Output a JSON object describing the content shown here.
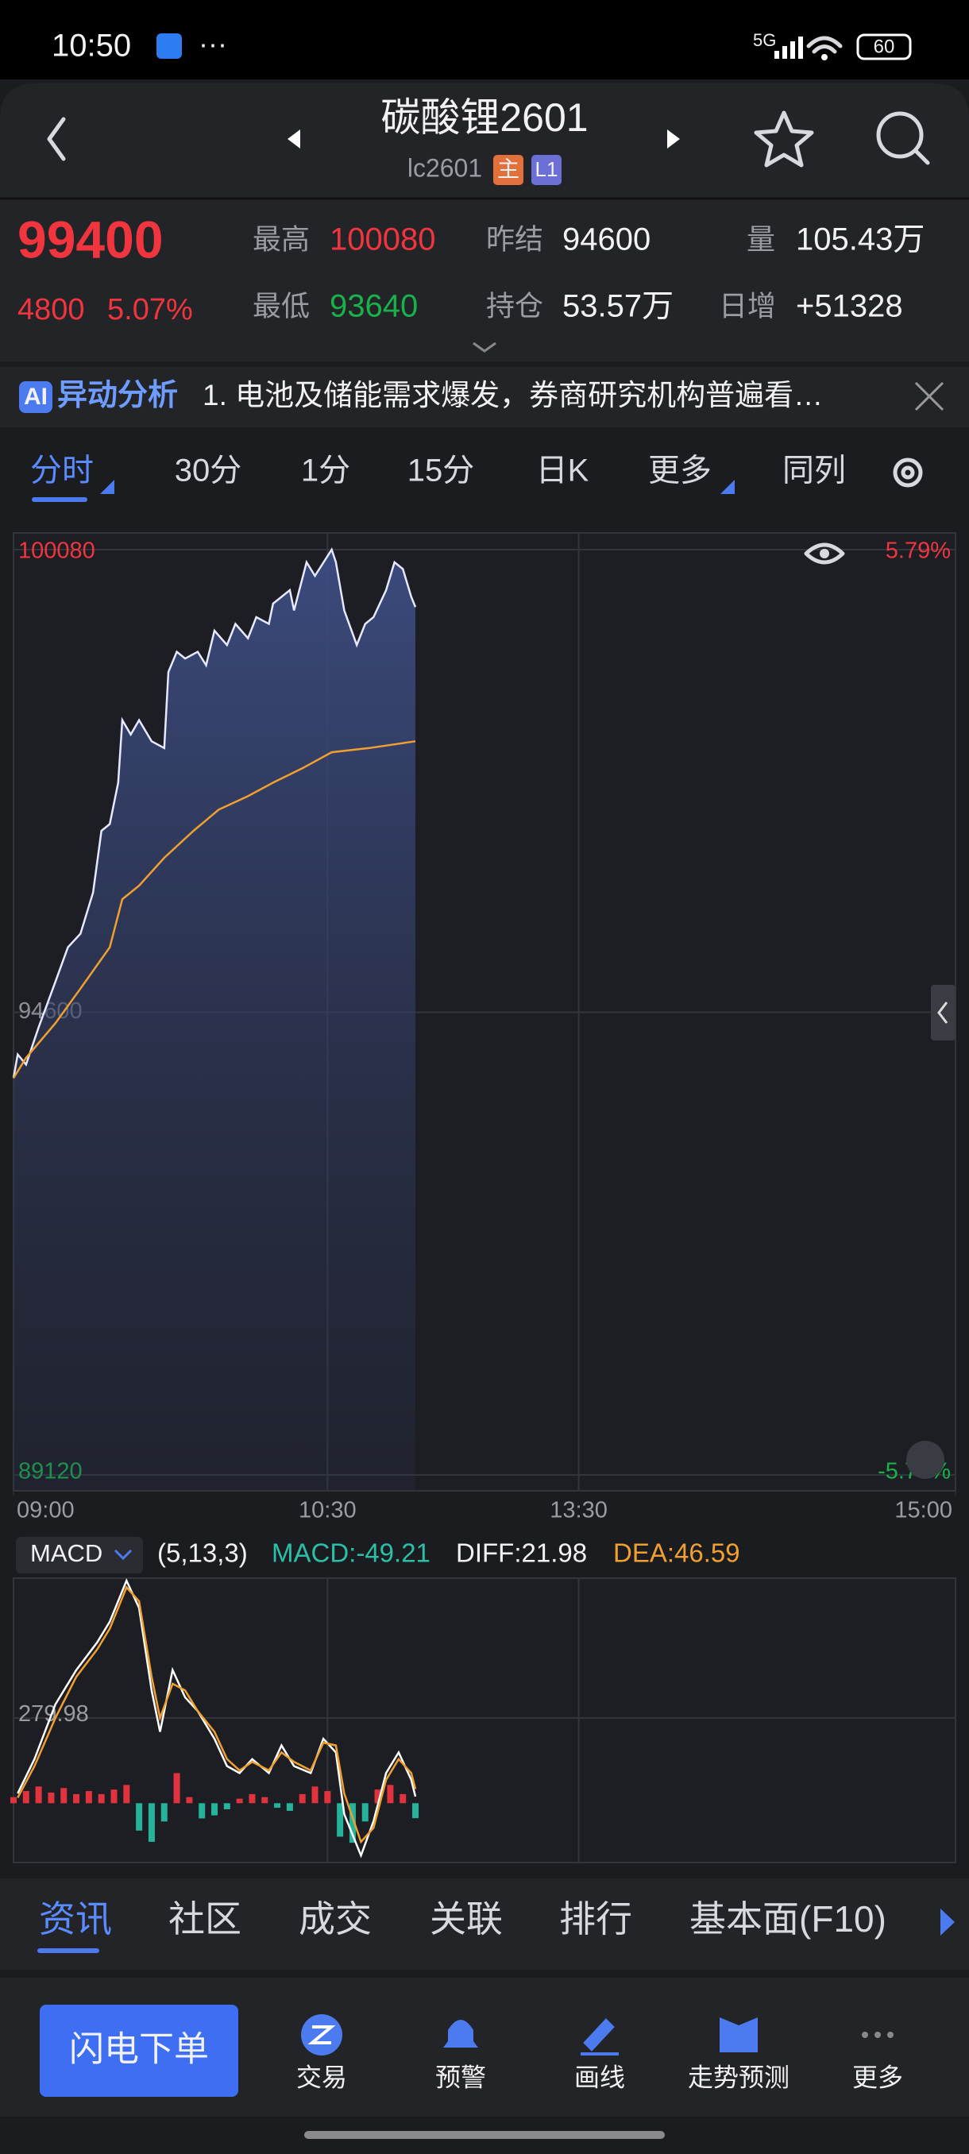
{
  "status_bar": {
    "time": "10:50",
    "network": "5G",
    "battery": "60"
  },
  "header": {
    "title": "碳酸锂2601",
    "code": "lc2601",
    "badges": [
      "主",
      "L1"
    ]
  },
  "quote": {
    "price": "99400",
    "change": "4800",
    "change_pct": "5.07%",
    "stats": [
      {
        "label": "最高",
        "value": "100080"
      },
      {
        "label": "最低",
        "value": "93640"
      },
      {
        "label": "昨结",
        "value": "94600"
      },
      {
        "label": "持仓",
        "value": "53.57万"
      },
      {
        "label": "量",
        "value": "105.43万"
      },
      {
        "label": "日增",
        "value": "+51328"
      }
    ]
  },
  "ai_banner": {
    "badge": "AI",
    "title": "异动分析",
    "text": "1. 电池及储能需求爆发，券商研究机构普遍看…"
  },
  "period_tabs": [
    "分时",
    "30分",
    "1分",
    "15分",
    "日K",
    "更多",
    "同列"
  ],
  "chart_data": [
    {
      "type": "line",
      "xlim": [
        0,
        225
      ],
      "xticks": [
        {
          "value": 0,
          "label": "09:00"
        },
        {
          "value": 75,
          "label": "10:30"
        },
        {
          "value": 135,
          "label": "13:30"
        },
        {
          "value": 225,
          "label": "15:00"
        }
      ],
      "ylim": [
        89120,
        100080
      ],
      "yticks": [
        100080,
        94600,
        89120
      ],
      "y2lim": [
        -5.79,
        5.79
      ],
      "y2ticks": [
        {
          "value": 5.79,
          "label": "5.79%"
        },
        {
          "value": -5.79,
          "label": "-5.79%"
        }
      ],
      "series": [
        {
          "color": "#e6e9ff",
          "area": true,
          "x": [
            0,
            1,
            3,
            6,
            10,
            13,
            16,
            19,
            21,
            23,
            25,
            26,
            28,
            30,
            33,
            36,
            37,
            39,
            41,
            44,
            46,
            48,
            51,
            53,
            56,
            58,
            61,
            62,
            66,
            67,
            70,
            72,
            76,
            77,
            79,
            82,
            84,
            86,
            89,
            91,
            93,
            95,
            96
          ],
          "values": [
            93820,
            94100,
            93980,
            94420,
            94960,
            95370,
            95530,
            96020,
            96750,
            96830,
            97320,
            98060,
            97890,
            98060,
            97810,
            97730,
            98630,
            98870,
            98790,
            98870,
            98710,
            99120,
            98950,
            99200,
            99030,
            99280,
            99200,
            99440,
            99600,
            99360,
            99930,
            99770,
            100080,
            99930,
            99360,
            98950,
            99200,
            99280,
            99600,
            99930,
            99850,
            99520,
            99400
          ]
        },
        {
          "color": "#f0a030",
          "x": [
            0,
            3,
            10,
            16,
            23,
            26,
            30,
            36,
            43,
            49,
            56,
            62,
            69,
            76,
            85,
            96
          ],
          "values": [
            93820,
            94060,
            94470,
            94880,
            95370,
            95940,
            96100,
            96430,
            96750,
            97000,
            97160,
            97320,
            97490,
            97680,
            97730,
            97810
          ]
        }
      ]
    },
    {
      "type": "macd",
      "indicator": "MACD",
      "params": "(5,13,3)",
      "legend_labels": [
        "MACD:-49.21",
        "DIFF:21.98",
        "DEA:46.59"
      ],
      "xlim": [
        0,
        225
      ],
      "ylim": [
        -195,
        740
      ],
      "yticks": [
        279.98
      ],
      "histogram": {
        "up_color": "#e0333d",
        "down_color": "#25b39b",
        "x": [
          0,
          3,
          6,
          9,
          12,
          15,
          18,
          21,
          24,
          27,
          30,
          33,
          36,
          39,
          42,
          45,
          48,
          51,
          54,
          57,
          60,
          63,
          66,
          69,
          72,
          75,
          78,
          81,
          84,
          87,
          90,
          93,
          96
        ],
        "values": [
          20,
          40,
          55,
          35,
          50,
          30,
          40,
          30,
          45,
          60,
          -90,
          -127,
          -60,
          99,
          20,
          -50,
          -40,
          -20,
          15,
          30,
          20,
          -15,
          -25,
          30,
          55,
          40,
          -110,
          -130,
          -60,
          45,
          60,
          30,
          -49.21
        ]
      },
      "series": [
        {
          "color": "#ffffff",
          "x": [
            1,
            5,
            10,
            15,
            20,
            23,
            27,
            30,
            33,
            35,
            38,
            41,
            44,
            48,
            51,
            54,
            57,
            61,
            64,
            67,
            71,
            74,
            77,
            79,
            83,
            86,
            89,
            92,
            95,
            96
          ],
          "values": [
            32,
            145,
            325,
            438,
            529,
            597,
            732,
            642,
            371,
            235,
            438,
            348,
            303,
            212,
            122,
            99,
            145,
            99,
            190,
            122,
            99,
            212,
            167,
            -36,
            -172,
            -59,
            99,
            167,
            77,
            21.98
          ]
        },
        {
          "color": "#f0a030",
          "x": [
            1,
            5,
            10,
            15,
            20,
            23,
            27,
            30,
            33,
            35,
            38,
            41,
            44,
            48,
            51,
            54,
            57,
            61,
            64,
            67,
            71,
            74,
            77,
            79,
            83,
            86,
            89,
            92,
            95,
            96
          ],
          "values": [
            18,
            122,
            280,
            416,
            506,
            574,
            710,
            664,
            416,
            280,
            393,
            371,
            303,
            235,
            145,
            108,
            136,
            108,
            167,
            136,
            108,
            199,
            190,
            32,
            -127,
            -81,
            77,
            145,
            99,
            46.59
          ]
        }
      ]
    }
  ],
  "bottom_tabs": [
    "资讯",
    "社区",
    "成交",
    "关联",
    "排行",
    "基本面(F10)"
  ],
  "action_bar": {
    "primary": "闪电下单",
    "items": [
      "交易",
      "预警",
      "画线",
      "走势预测",
      "更多"
    ]
  }
}
